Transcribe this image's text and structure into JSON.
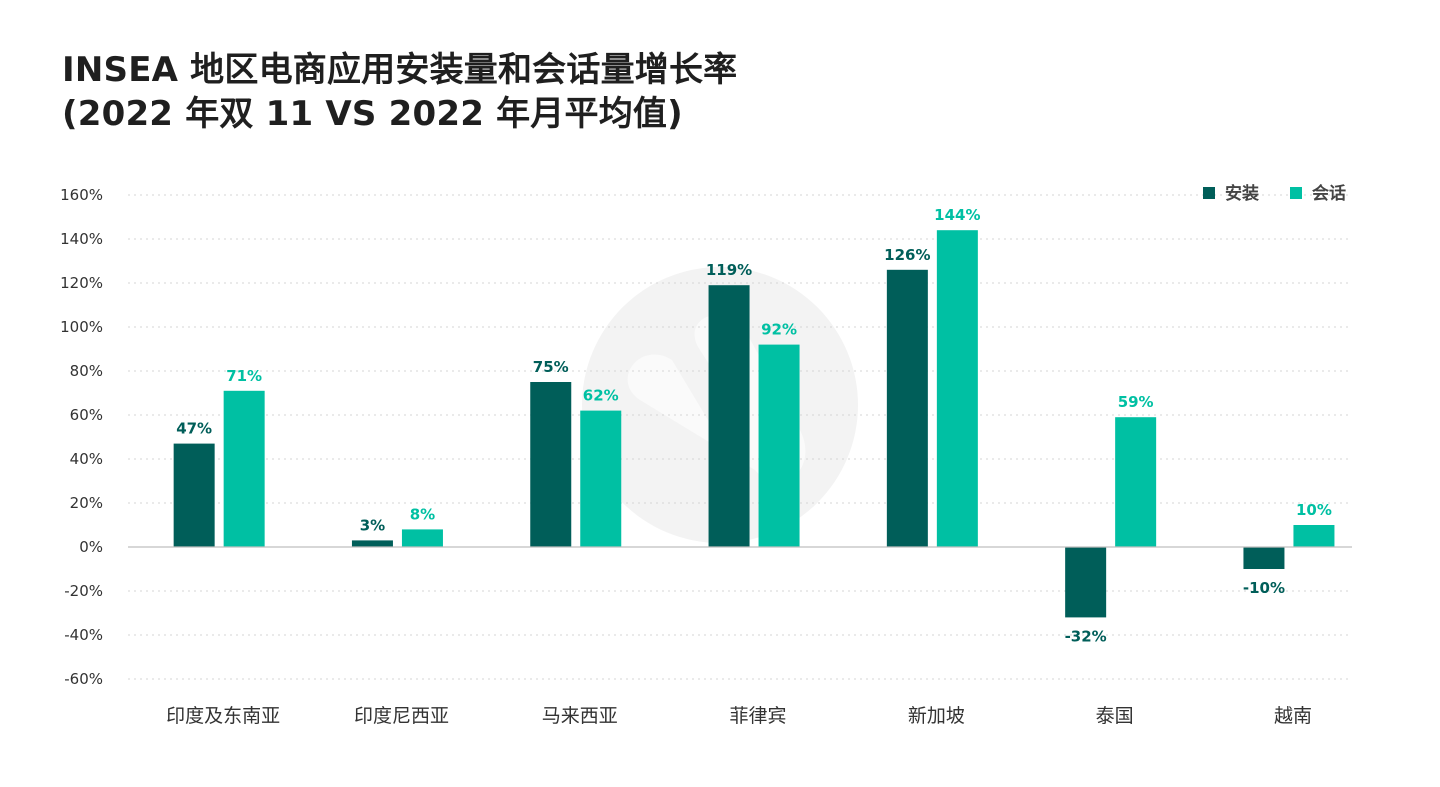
{
  "title": {
    "line1": "INSEA 地区电商应用安装量和会话量增长率",
    "line2": "(2022 年双 11 VS 2022 年月平均值)"
  },
  "colors": {
    "install": "#005e59",
    "session": "#00c0a3",
    "grid": "#d6d6d6",
    "axis": "#bfbfbf",
    "watermark": "#f3f3f3"
  },
  "chart_data": {
    "type": "bar",
    "title": "INSEA 地区电商应用安装量和会话量增长率 (2022 年双 11 VS 2022 年月平均值)",
    "categories": [
      "印度及东南亚",
      "印度尼西亚",
      "马来西亚",
      "菲律宾",
      "新加坡",
      "泰国",
      "越南"
    ],
    "series": [
      {
        "name": "安装",
        "values": [
          47,
          3,
          75,
          119,
          126,
          -32,
          -10
        ]
      },
      {
        "name": "会话",
        "values": [
          71,
          8,
          62,
          92,
          144,
          59,
          10
        ]
      }
    ],
    "ylim": [
      -60,
      160
    ],
    "yticks": [
      160,
      140,
      120,
      100,
      80,
      60,
      40,
      20,
      0,
      -20,
      -40,
      -60
    ],
    "ytick_suffix": "%",
    "value_suffix": "%",
    "grid": true,
    "legend_position": "top-right",
    "xlabel": "",
    "ylabel": ""
  }
}
